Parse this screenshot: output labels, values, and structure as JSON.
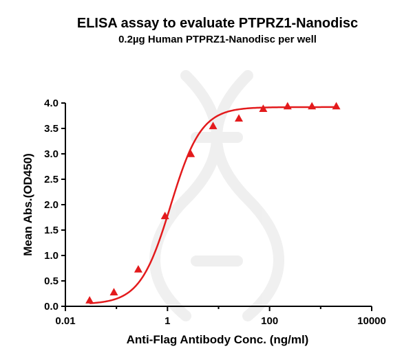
{
  "chart_data": {
    "type": "scatter",
    "title": "ELISA assay to evaluate PTPRZ1-Nanodisc",
    "subtitle": "0.2µg Human PTPRZ1-Nanodisc per well",
    "xlabel": "Anti-Flag Antibody Conc. (ng/ml)",
    "ylabel": "Mean Abs.(OD450)",
    "x_scale": "log",
    "xlim": [
      0.01,
      10000
    ],
    "ylim": [
      0,
      4.0
    ],
    "x_ticks": [
      0.01,
      1,
      100,
      10000
    ],
    "x_tick_labels": [
      "0.01",
      "1",
      "100",
      "10000"
    ],
    "y_ticks": [
      0,
      0.5,
      1,
      1.5,
      2,
      2.5,
      3,
      3.5,
      4
    ],
    "y_tick_labels": [
      "0.0",
      "0.5",
      "1.0",
      "1.5",
      "2.0",
      "2.5",
      "3.0",
      "3.5",
      "4.0"
    ],
    "grid": false,
    "series": [
      {
        "marker": "triangle",
        "color": "#e31a1c",
        "fit": "4PL",
        "x": [
          0.0298,
          0.0892,
          0.268,
          0.893,
          2.86,
          7.81,
          25.0,
          75.0,
          225.0,
          675.0,
          2025.0
        ],
        "y": [
          0.12,
          0.28,
          0.73,
          1.78,
          3.0,
          3.55,
          3.7,
          3.89,
          3.94,
          3.94,
          3.94
        ]
      }
    ]
  }
}
